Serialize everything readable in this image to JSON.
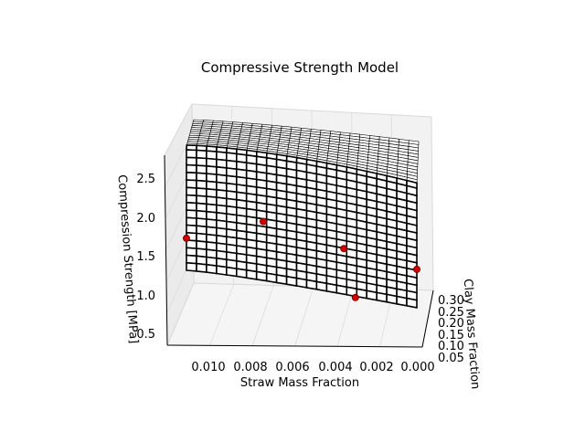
{
  "chart_data": {
    "type": "surface",
    "title": "Compressive Strength Model",
    "xlabel": "Straw Mass Fraction",
    "ylabel": "Clay Mass Fraction",
    "zlabel": "Compression Strength [MPa]",
    "x_ticks": [
      "0.010",
      "0.008",
      "0.006",
      "0.004",
      "0.002",
      "0.000"
    ],
    "y_ticks": [
      "0.05",
      "0.10",
      "0.15",
      "0.20",
      "0.25",
      "0.30"
    ],
    "z_ticks": [
      "0.5",
      "1.0",
      "1.5",
      "2.0",
      "2.5"
    ],
    "x_range": [
      0.0,
      0.012
    ],
    "y_range": [
      0.05,
      0.35
    ],
    "z_range": [
      0.4,
      2.8
    ],
    "grid": true,
    "surface_color": "#ffffff",
    "wire_color": "#000000",
    "point_color": "#cc0000",
    "measured_points": [
      {
        "straw": 0.012,
        "clay": 0.05,
        "strength": 1.72
      },
      {
        "straw": 0.008,
        "clay": 0.05,
        "strength": 1.93
      },
      {
        "straw": 0.0038,
        "clay": 0.05,
        "strength": 1.6
      },
      {
        "straw": 0.0,
        "clay": 0.05,
        "strength": 1.35
      },
      {
        "straw": 0.0032,
        "clay": 0.05,
        "strength": 1.0
      }
    ]
  }
}
